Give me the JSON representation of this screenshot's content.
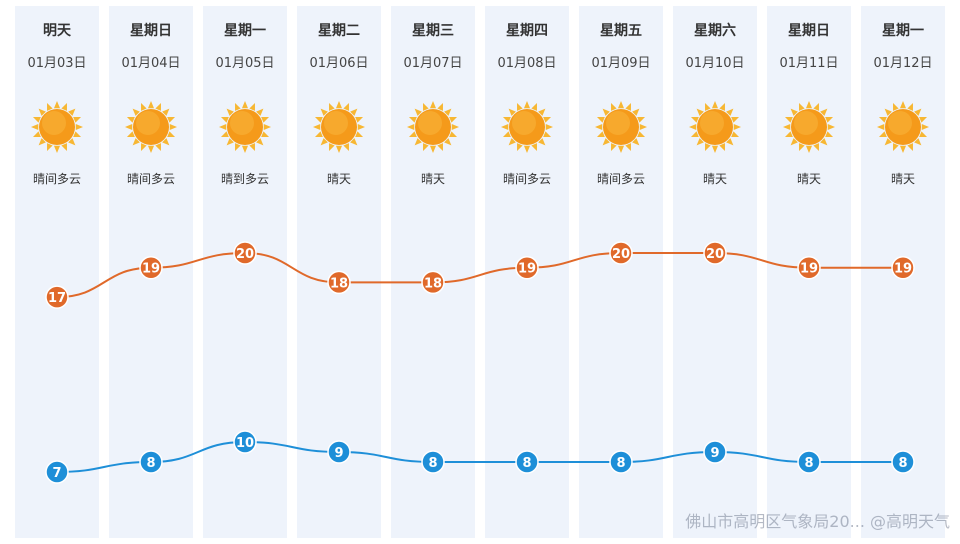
{
  "chart_data": {
    "type": "line",
    "days": [
      {
        "day": "明天",
        "date": "01月03日",
        "condition": "晴间多云",
        "icon": "sun-icon"
      },
      {
        "day": "星期日",
        "date": "01月04日",
        "condition": "晴间多云",
        "icon": "sun-icon"
      },
      {
        "day": "星期一",
        "date": "01月05日",
        "condition": "晴到多云",
        "icon": "sun-icon"
      },
      {
        "day": "星期二",
        "date": "01月06日",
        "condition": "晴天",
        "icon": "sun-icon"
      },
      {
        "day": "星期三",
        "date": "01月07日",
        "condition": "晴天",
        "icon": "sun-icon"
      },
      {
        "day": "星期四",
        "date": "01月08日",
        "condition": "晴间多云",
        "icon": "sun-icon"
      },
      {
        "day": "星期五",
        "date": "01月09日",
        "condition": "晴间多云",
        "icon": "sun-icon"
      },
      {
        "day": "星期六",
        "date": "01月10日",
        "condition": "晴天",
        "icon": "sun-icon"
      },
      {
        "day": "星期日",
        "date": "01月11日",
        "condition": "晴天",
        "icon": "sun-icon"
      },
      {
        "day": "星期一",
        "date": "01月12日",
        "condition": "晴天",
        "icon": "sun-icon"
      }
    ],
    "series": [
      {
        "color": "#e0692a",
        "values": [
          17,
          19,
          20,
          18,
          18,
          19,
          20,
          20,
          19,
          19
        ]
      },
      {
        "color": "#1e8fd8",
        "values": [
          7,
          8,
          10,
          9,
          8,
          8,
          8,
          9,
          8,
          8
        ]
      }
    ],
    "grid": false
  },
  "watermark": "佛山市高明区气象局20... @高明天气",
  "colors": {
    "column_bg": "#eef3fb",
    "sun": "#f59a1a"
  }
}
